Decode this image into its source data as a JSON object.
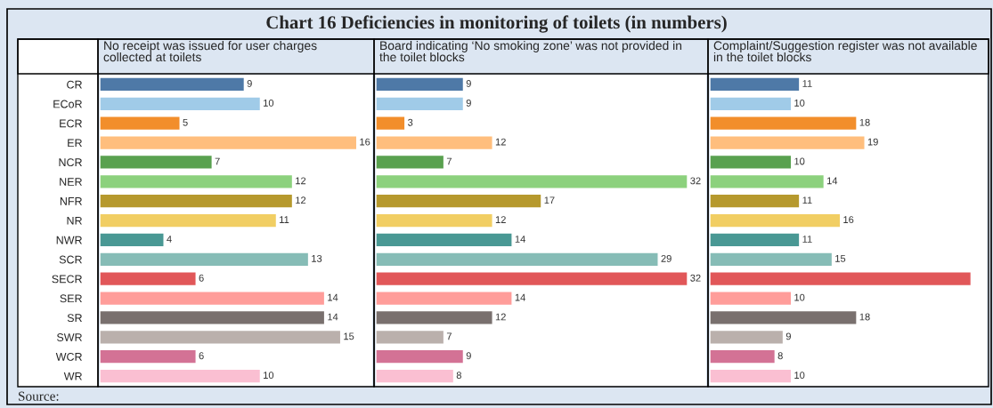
{
  "chart_data": [
    {
      "type": "bar",
      "orientation": "horizontal",
      "title": "Chart 16 Deficiencies in monitoring of toilets (in numbers)",
      "subtitle": "No receipt was issued for user charges collected at toilets",
      "annotations": [
        "Source:"
      ],
      "tick_labels": "y",
      "data_labels": true,
      "categories": [
        "CR",
        "ECoR",
        "ECR",
        "ER",
        "NCR",
        "NER",
        "NFR",
        "NR",
        "NWR",
        "SCR",
        "SECR",
        "SER",
        "SR",
        "SWR",
        "WCR",
        "WR"
      ],
      "colors": [
        "#4e79a7",
        "#a0cbe8",
        "#f28e2b",
        "#ffbe7d",
        "#59a14f",
        "#8cd17d",
        "#b6992d",
        "#f1ce63",
        "#499894",
        "#86bcb6",
        "#e15759",
        "#ff9d9a",
        "#79706e",
        "#bab0ac",
        "#d37295",
        "#fabfd2"
      ],
      "values": [
        9,
        10,
        5,
        16,
        7,
        12,
        12,
        11,
        4,
        13,
        6,
        14,
        14,
        15,
        6,
        10
      ]
    },
    {
      "type": "bar",
      "orientation": "horizontal",
      "subtitle": "Board indicating ‘No smoking zone’ was not provided in the toilet blocks",
      "data_labels": true,
      "categories": [
        null,
        null,
        null,
        null,
        null,
        null,
        null,
        null,
        null,
        null,
        null,
        null,
        null,
        null,
        null,
        null
      ],
      "colors": [
        "#4e79a7",
        "#a0cbe8",
        "#f28e2b",
        "#ffbe7d",
        "#59a14f",
        "#8cd17d",
        "#b6992d",
        "#f1ce63",
        "#499894",
        "#86bcb6",
        "#e15759",
        "#ff9d9a",
        "#79706e",
        "#bab0ac",
        "#d37295",
        "#fabfd2"
      ],
      "values": [
        9,
        9,
        3,
        12,
        7,
        32,
        17,
        12,
        14,
        29,
        32,
        14,
        12,
        7,
        9,
        8
      ]
    },
    {
      "type": "bar",
      "orientation": "horizontal",
      "subtitle": "Complaint/Suggestion register was not available in the toilet blocks",
      "categories": [
        null,
        null,
        null,
        null,
        null,
        null,
        null,
        null,
        null,
        null,
        null,
        null,
        null,
        null,
        null,
        null
      ],
      "colors": [
        "#4e79a7",
        "#a0cbe8",
        "#f28e2b",
        "#ffbe7d",
        "#59a14f",
        "#8cd17d",
        "#b6992d",
        "#f1ce63",
        "#499894",
        "#86bcb6",
        "#e15759",
        "#ff9d9a",
        "#79706e",
        "#bab0ac",
        "#d37295",
        "#fabfd2"
      ],
      "values": [
        11,
        10,
        18,
        19,
        10,
        14,
        11,
        16,
        11,
        15,
        32,
        10,
        18,
        9,
        8,
        10
      ],
      "value_labels": [
        "11",
        "10",
        "18",
        "19",
        "10",
        "14",
        "11",
        "16",
        "11",
        "15",
        null,
        "10",
        "18",
        "9",
        "8",
        "10"
      ]
    }
  ]
}
